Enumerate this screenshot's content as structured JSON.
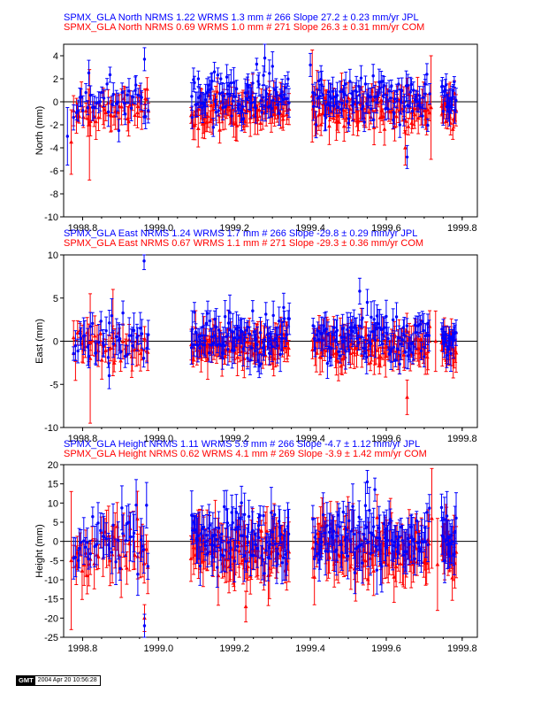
{
  "colors": {
    "blue": "#0000ff",
    "red": "#ff0000",
    "axis": "#000000"
  },
  "gmt_stamp": {
    "logo": "GMT",
    "timestamp": "2004 Apr 20 10:56:28"
  },
  "chart_data": [
    {
      "type": "scatter",
      "title_lines": [
        "SPMX_GLA North NRMS 1.22 WRMS  1.3 mm # 266 Slope   27.2 ±  0.23 mm/yr JPL",
        "SPMX_GLA North NRMS 0.69 WRMS  1.0 mm # 271 Slope   26.3 ±  0.31 mm/yr COM"
      ],
      "xlabel": "",
      "ylabel": "North (mm)",
      "xlim": [
        1998.75,
        1999.84
      ],
      "ylim": [
        -10,
        5
      ],
      "xticks": [
        "1998.8",
        "1999.0",
        "1999.2",
        "1999.4",
        "1999.6",
        "1999.8"
      ],
      "yticks": [
        "-10",
        "-8",
        "-6",
        "-4",
        "-2",
        "0",
        "2",
        "4"
      ],
      "zero_line": true,
      "series": [
        {
          "name": "JPL",
          "color": "#0000ff",
          "marker": "circle",
          "scatter": 1.3,
          "err": 1.0,
          "offset": 0.3,
          "seed": 11,
          "outliers": [
            [
              1998.76,
              -3.0,
              2.5
            ],
            [
              1998.963,
              3.7,
              1.0
            ],
            [
              1999.28,
              3.8,
              1.2
            ],
            [
              1999.4,
              3.2,
              1.0
            ],
            [
              1999.655,
              -4.8,
              1.0
            ]
          ]
        },
        {
          "name": "COM",
          "color": "#ff0000",
          "marker": "triangle",
          "scatter": 1.0,
          "err": 1.2,
          "offset": -0.7,
          "seed": 23,
          "outliers": [
            [
              1998.77,
              -3.5,
              2.8
            ],
            [
              1998.818,
              -2.0,
              4.8
            ],
            [
              1998.97,
              1.1,
              1.0
            ],
            [
              1999.405,
              0.5,
              4.0
            ],
            [
              1999.65,
              -4.0,
              1.5
            ],
            [
              1999.718,
              -0.5,
              4.5
            ]
          ]
        }
      ]
    },
    {
      "type": "scatter",
      "title_lines": [
        "SPMX_GLA East NRMS 1.24 WRMS  1.7 mm # 266 Slope  -29.8 ±  0.29 mm/yr JPL",
        "SPMX_GLA East NRMS 0.67 WRMS  1.1 mm # 271 Slope  -29.3 ±  0.36 mm/yr COM"
      ],
      "xlabel": "",
      "ylabel": "East (mm)",
      "xlim": [
        1998.75,
        1999.84
      ],
      "ylim": [
        -10,
        10
      ],
      "xticks": [
        "1998.8",
        "1999.0",
        "1999.2",
        "1999.4",
        "1999.6",
        "1999.8"
      ],
      "yticks": [
        "-10",
        "-5",
        "0",
        "5",
        "10"
      ],
      "zero_line": true,
      "series": [
        {
          "name": "JPL",
          "color": "#0000ff",
          "marker": "circle",
          "scatter": 1.7,
          "err": 1.6,
          "offset": 0.4,
          "seed": 37,
          "outliers": [
            [
              1998.962,
              9.3,
              1.0
            ],
            [
              1999.53,
              5.8,
              1.5
            ],
            [
              1999.55,
              4.5,
              1.5
            ],
            [
              1998.87,
              -4.0,
              1.5
            ]
          ]
        },
        {
          "name": "COM",
          "color": "#ff0000",
          "marker": "triangle",
          "scatter": 1.1,
          "err": 1.8,
          "offset": -0.6,
          "seed": 41,
          "outliers": [
            [
              1998.82,
              -2.0,
              7.5
            ],
            [
              1998.88,
              1.0,
              5.0
            ],
            [
              1999.655,
              -6.5,
              2.0
            ],
            [
              1999.73,
              0.0,
              3.5
            ]
          ]
        }
      ]
    },
    {
      "type": "scatter",
      "title_lines": [
        "SPMX_GLA Height NRMS 1.11 WRMS  5.9 mm # 266 Slope   -4.7 ±  1.12 mm/yr JPL",
        "SPMX_GLA Height NRMS 0.62 WRMS  4.1 mm # 269 Slope   -3.9 ±  1.42 mm/yr COM"
      ],
      "xlabel": "",
      "ylabel": "Height (mm)",
      "xlim": [
        1998.75,
        1999.84
      ],
      "ylim": [
        -25,
        20
      ],
      "xticks": [
        "1998.8",
        "1999.0",
        "1999.2",
        "1999.4",
        "1999.6",
        "1999.8"
      ],
      "yticks": [
        "-25",
        "-20",
        "-15",
        "-10",
        "-5",
        "0",
        "5",
        "10",
        "15",
        "20"
      ],
      "zero_line": true,
      "series": [
        {
          "name": "JPL",
          "color": "#0000ff",
          "marker": "circle",
          "scatter": 5.0,
          "err": 5.0,
          "offset": 1.0,
          "seed": 53,
          "outliers": [
            [
              1998.963,
              -22.0,
              3.0
            ],
            [
              1999.55,
              15.5,
              3.0
            ],
            [
              1999.57,
              13.5,
              3.0
            ]
          ]
        },
        {
          "name": "COM",
          "color": "#ff0000",
          "marker": "triangle",
          "scatter": 4.0,
          "err": 6.0,
          "offset": -2.0,
          "seed": 67,
          "outliers": [
            [
              1998.77,
              -5.0,
              18.0
            ],
            [
              1999.72,
              6.0,
              13.0
            ],
            [
              1999.735,
              -6.0,
              12.0
            ],
            [
              1999.23,
              -17.0,
              4.0
            ],
            [
              1998.963,
              -20.0,
              3.5
            ]
          ]
        }
      ]
    }
  ]
}
